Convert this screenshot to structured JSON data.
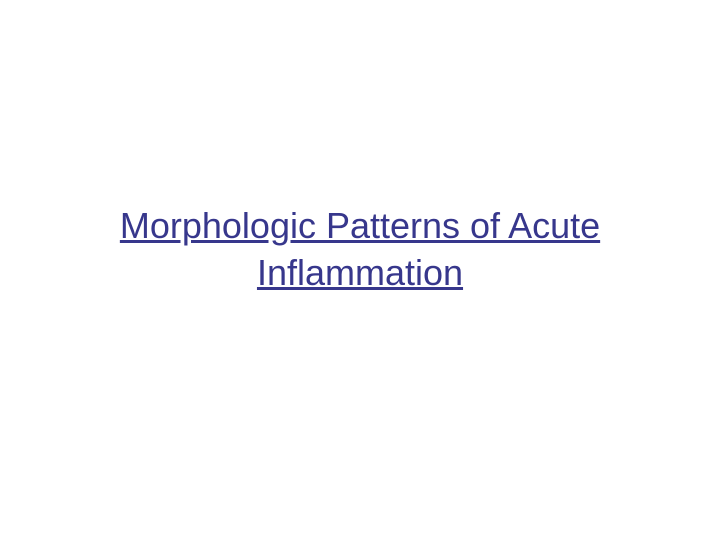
{
  "slide": {
    "title": "Morphologic Patterns of Acute \nInflammation ",
    "title_color": "#37378c",
    "title_fontsize": 36,
    "title_underlined": true,
    "background_color": "#ffffff"
  }
}
